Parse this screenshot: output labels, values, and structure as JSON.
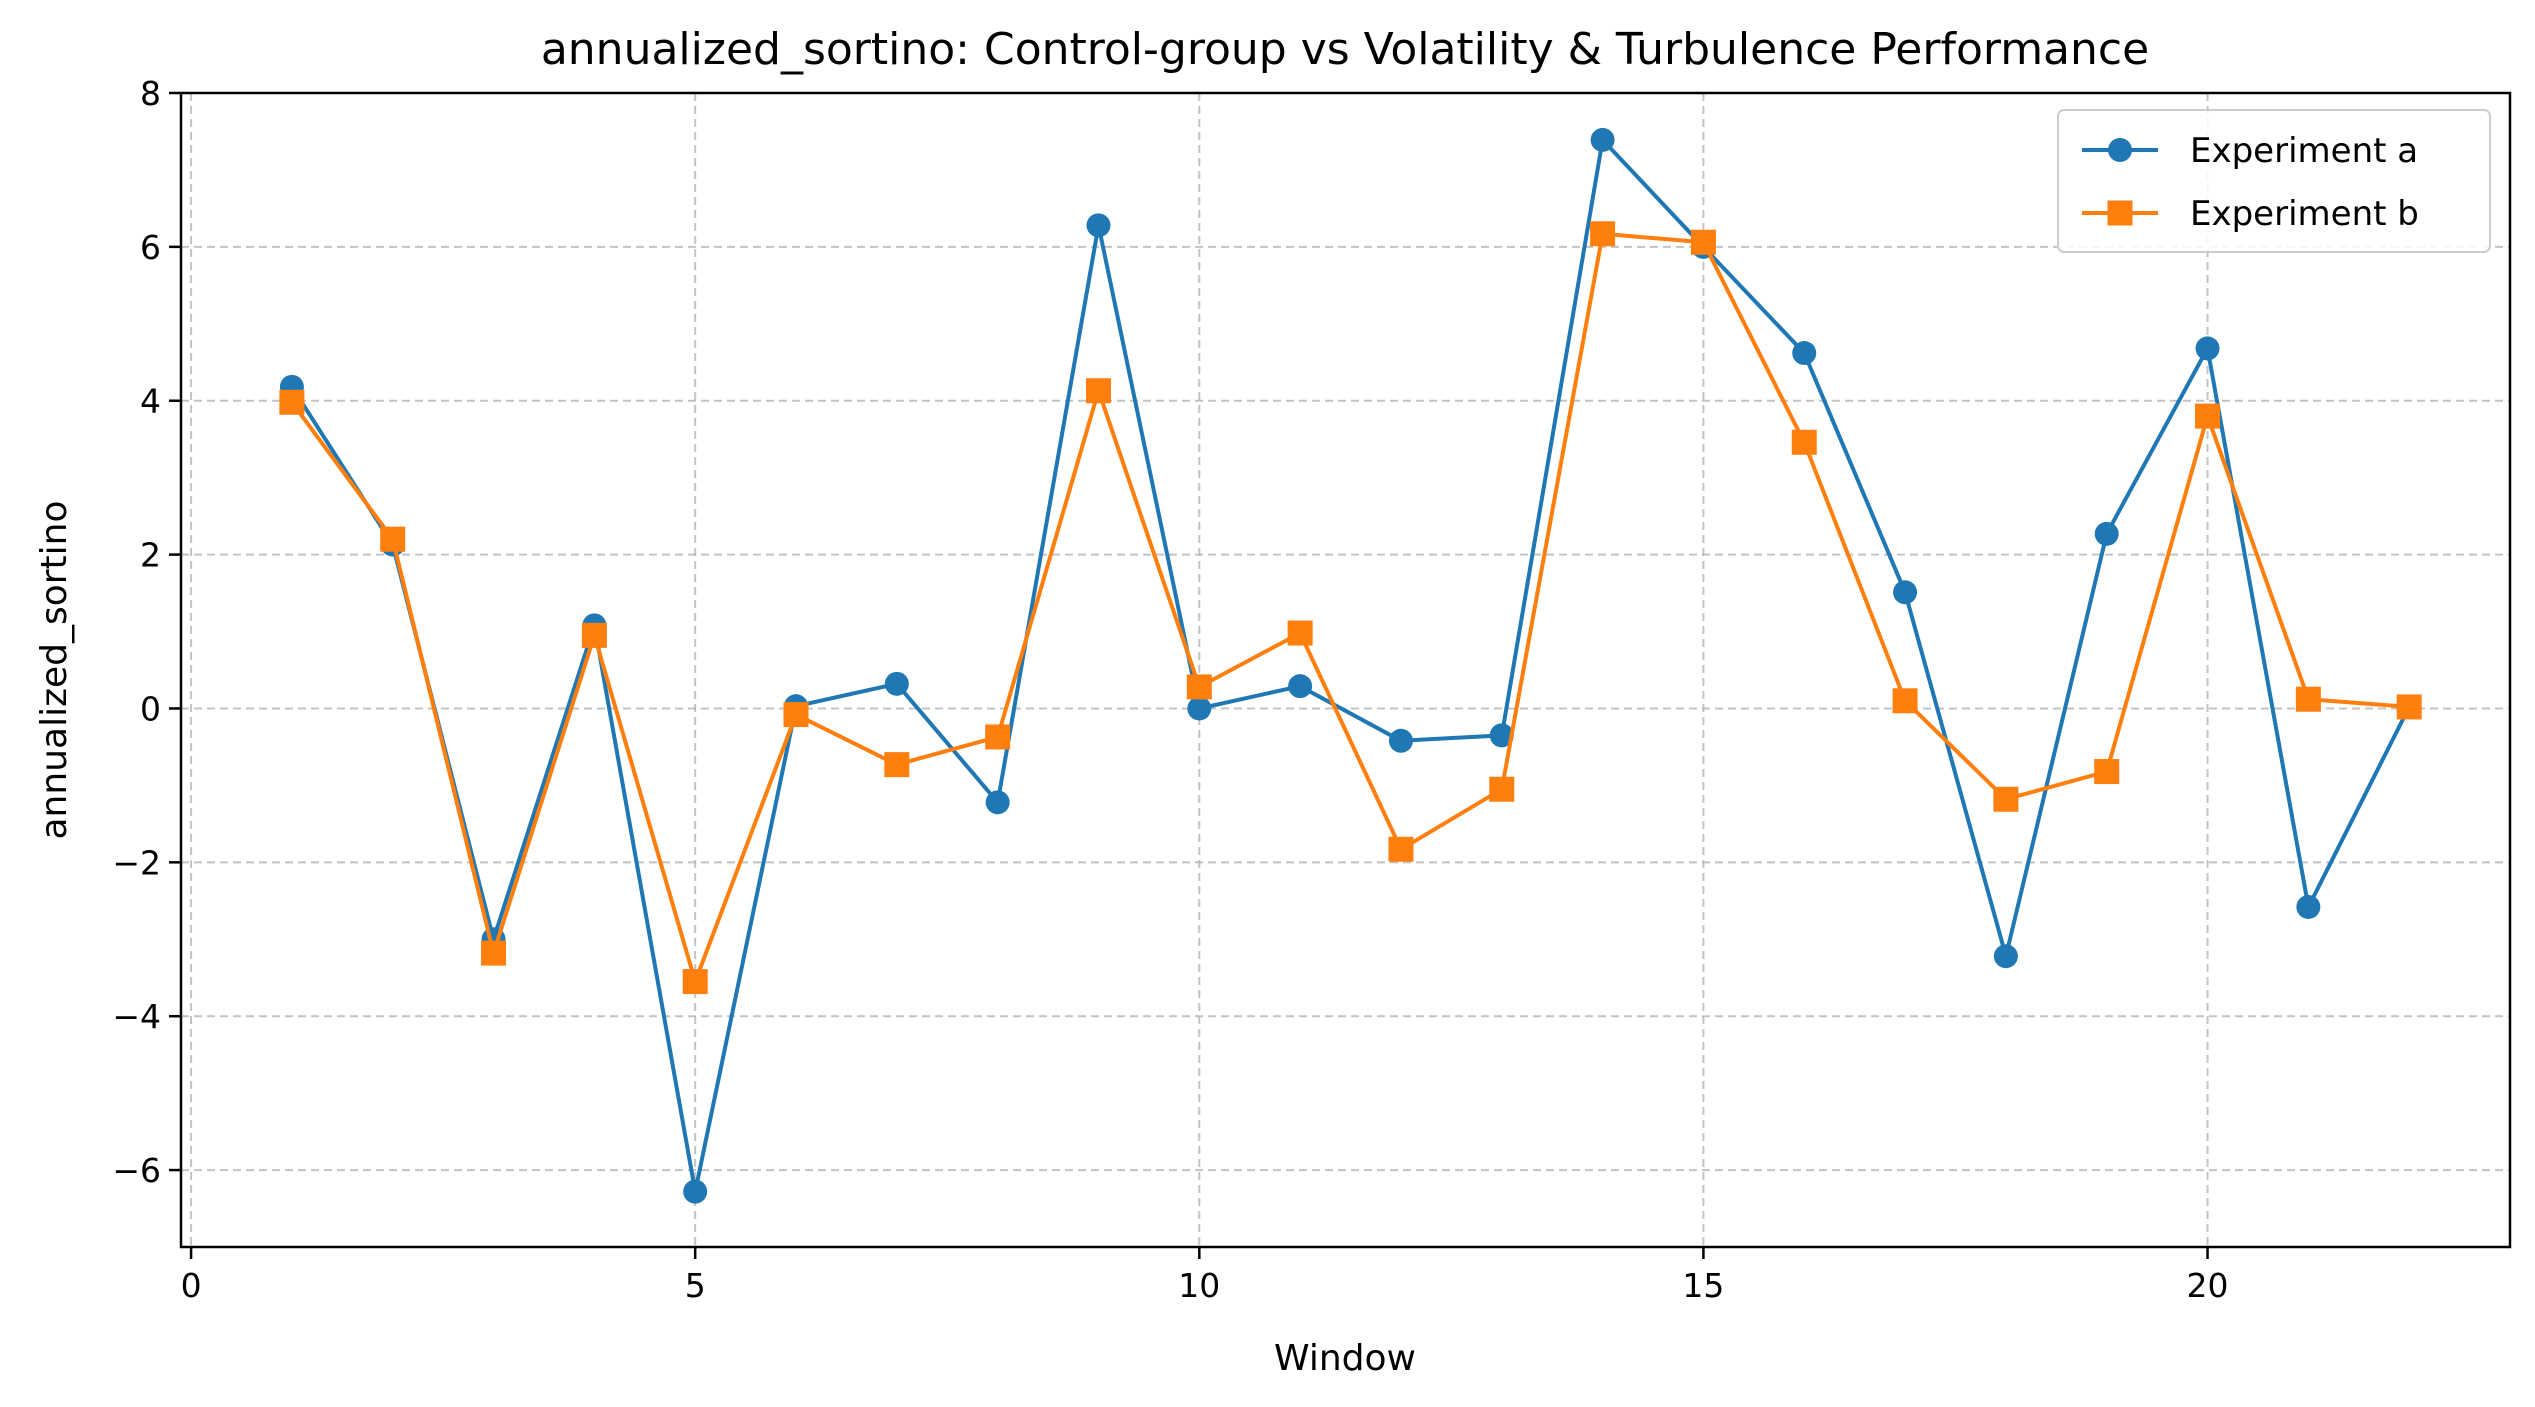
{
  "chart_data": {
    "type": "line",
    "title": "annualized_sortino: Control-group vs Volatility & Turbulence Performance",
    "xlabel": "Window",
    "ylabel": "annualized_sortino",
    "xlim": [
      -0.1,
      23.0
    ],
    "ylim": [
      -7.0,
      8.0
    ],
    "xticks": [
      0,
      5,
      10,
      15,
      20
    ],
    "yticks": [
      -6,
      -4,
      -2,
      0,
      2,
      4,
      6,
      8
    ],
    "xtick_labels": [
      "0",
      "5",
      "10",
      "15",
      "20"
    ],
    "ytick_labels": [
      "−6",
      "−4",
      "−2",
      "0",
      "2",
      "4",
      "6",
      "8"
    ],
    "grid": true,
    "legend_position": "top-right",
    "x": [
      1,
      2,
      3,
      4,
      5,
      6,
      7,
      8,
      9,
      10,
      11,
      12,
      13,
      14,
      15,
      16,
      17,
      18,
      19,
      20,
      21,
      22
    ],
    "series": [
      {
        "name": "Experiment a",
        "color": "#1f77b4",
        "marker": "circle",
        "values": [
          4.18,
          2.13,
          -3.0,
          1.08,
          -6.28,
          0.03,
          0.32,
          -1.22,
          6.28,
          0.0,
          0.29,
          -0.42,
          -0.35,
          7.39,
          6.0,
          4.62,
          1.51,
          -3.22,
          2.27,
          4.68,
          -2.58,
          0.02
        ]
      },
      {
        "name": "Experiment b",
        "color": "#ff7f0e",
        "marker": "square",
        "values": [
          3.98,
          2.2,
          -3.18,
          0.95,
          -3.55,
          -0.08,
          -0.73,
          -0.37,
          4.13,
          0.28,
          0.98,
          -1.83,
          -1.05,
          6.17,
          6.06,
          3.46,
          0.1,
          -1.18,
          -0.82,
          3.8,
          0.12,
          0.02
        ]
      }
    ]
  }
}
